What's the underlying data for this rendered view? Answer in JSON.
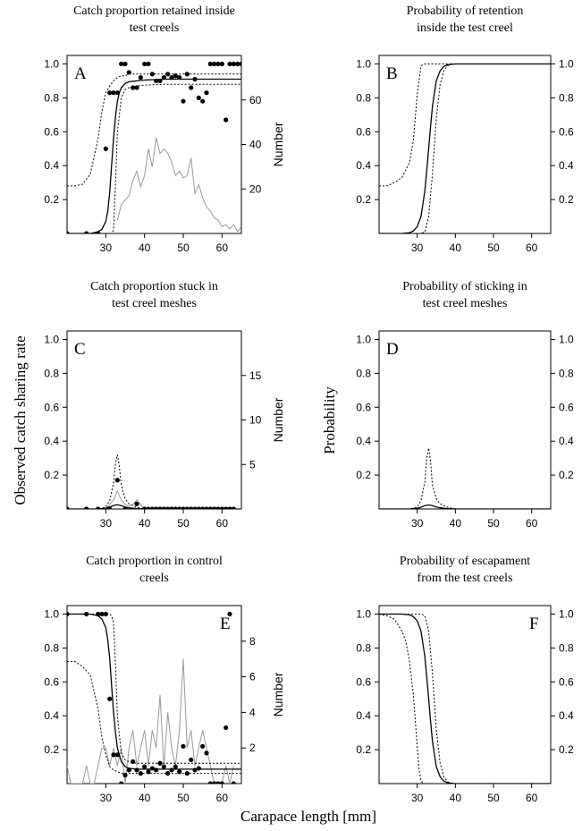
{
  "figure": {
    "xlabel": "Carapace length [mm]",
    "ylabel_left_panels": "Observed catch sharing rate",
    "ylabel_right_panels": "Probability",
    "colors": {
      "line": "#000000",
      "counts": "#999999",
      "points": "#000000"
    }
  },
  "chart_data": [
    {
      "id": "A",
      "type": "line",
      "title_lines": [
        "Catch proportion retained inside",
        "test creels"
      ],
      "letter": "A",
      "xlim": [
        20,
        65
      ],
      "xticks": [
        30,
        40,
        50,
        60
      ],
      "ylim": [
        0,
        1.05
      ],
      "yticks": [
        0.2,
        0.4,
        0.6,
        0.8,
        1.0
      ],
      "secondary_axis": {
        "label": "Number",
        "ylim": [
          0,
          80
        ],
        "ticks": [
          20,
          40,
          60
        ]
      },
      "fit": {
        "x": [
          20,
          22,
          24,
          26,
          27,
          28,
          29,
          30,
          30.5,
          31,
          31.5,
          32,
          32.5,
          33,
          33.5,
          34,
          35,
          36,
          38,
          40,
          45,
          50,
          55,
          60,
          65
        ],
        "y": [
          0,
          0,
          0,
          0,
          0.005,
          0.01,
          0.025,
          0.07,
          0.13,
          0.24,
          0.4,
          0.56,
          0.69,
          0.78,
          0.83,
          0.86,
          0.885,
          0.895,
          0.9,
          0.905,
          0.91,
          0.91,
          0.91,
          0.91,
          0.91
        ]
      },
      "ci_lower": {
        "x": [
          20,
          28,
          29,
          30,
          31,
          31.5,
          32,
          32.5,
          33,
          34,
          35,
          36,
          38,
          40,
          45,
          50,
          55,
          60,
          65
        ],
        "y": [
          0,
          0,
          0,
          0,
          0,
          0,
          0.02,
          0.3,
          0.6,
          0.8,
          0.85,
          0.86,
          0.87,
          0.875,
          0.88,
          0.88,
          0.88,
          0.88,
          0.88
        ]
      },
      "ci_upper": {
        "x": [
          20,
          22,
          24,
          26,
          28,
          29,
          30,
          31,
          32,
          33,
          34,
          35,
          36,
          38,
          40,
          45,
          50,
          55,
          60,
          65
        ],
        "y": [
          0.28,
          0.28,
          0.29,
          0.35,
          0.56,
          0.72,
          0.83,
          0.87,
          0.9,
          0.92,
          0.93,
          0.93,
          0.94,
          0.94,
          0.94,
          0.94,
          0.94,
          0.94,
          0.94,
          0.94
        ]
      },
      "points": {
        "x": [
          20,
          25,
          28,
          30,
          31,
          32,
          33,
          34,
          35,
          36,
          37,
          38,
          39,
          40,
          41,
          42,
          43,
          44,
          45,
          46,
          47,
          48,
          49,
          50,
          51,
          52,
          53,
          54,
          55,
          56,
          57,
          58,
          59,
          60,
          61,
          62,
          63,
          64,
          65
        ],
        "y": [
          0,
          0,
          0,
          0.5,
          0.83,
          0.83,
          0.83,
          1.0,
          1.0,
          0.95,
          0.86,
          0.86,
          0.92,
          1.0,
          1.0,
          0.94,
          0.9,
          0.9,
          0.92,
          0.94,
          0.92,
          0.93,
          0.92,
          0.78,
          0.94,
          0.86,
          0.91,
          0.8,
          0.78,
          0.83,
          1.0,
          1.0,
          1.0,
          1.0,
          0.67,
          1.0,
          1.0,
          1.0,
          1.0
        ]
      },
      "counts": {
        "x": [
          33,
          34,
          35,
          36,
          37,
          38,
          39,
          40,
          41,
          42,
          43,
          44,
          45,
          46,
          47,
          48,
          49,
          50,
          51,
          52,
          53,
          54,
          55,
          56,
          57,
          58,
          59,
          60,
          61,
          62,
          63,
          64,
          65
        ],
        "y": [
          6,
          13,
          15,
          17,
          24,
          28,
          21,
          26,
          38,
          30,
          43,
          36,
          38,
          36,
          32,
          26,
          28,
          25,
          26,
          34,
          18,
          22,
          16,
          12,
          10,
          7,
          6,
          3,
          4,
          2,
          4,
          1,
          3
        ]
      }
    },
    {
      "id": "B",
      "type": "line",
      "title_lines": [
        "Probability of retention",
        "inside the test creel"
      ],
      "letter": "B",
      "xlim": [
        20,
        65
      ],
      "xticks": [
        30,
        40,
        50,
        60
      ],
      "ylim": [
        0,
        1.05
      ],
      "yticks": [
        0.2,
        0.4,
        0.6,
        0.8,
        1.0
      ],
      "fit": {
        "x": [
          20,
          26,
          28,
          29,
          30,
          31,
          32,
          32.5,
          33,
          33.5,
          34,
          35,
          36,
          37,
          38,
          40,
          45,
          50,
          55,
          60,
          65
        ],
        "y": [
          0,
          0,
          0.005,
          0.015,
          0.04,
          0.1,
          0.25,
          0.37,
          0.5,
          0.63,
          0.75,
          0.9,
          0.96,
          0.985,
          0.995,
          1,
          1,
          1,
          1,
          1,
          1
        ]
      },
      "ci_lower": {
        "x": [
          20,
          28,
          31,
          32,
          33,
          34,
          35,
          36,
          37,
          38,
          39,
          40,
          45,
          50,
          55,
          60,
          65
        ],
        "y": [
          0,
          0,
          0,
          0.01,
          0.1,
          0.35,
          0.68,
          0.88,
          0.96,
          0.99,
          1,
          1,
          1,
          1,
          1,
          1,
          1
        ]
      },
      "ci_upper": {
        "x": [
          20,
          22,
          24,
          26,
          28,
          29,
          30,
          31,
          32,
          33,
          34,
          35,
          38,
          40,
          45,
          50,
          55,
          60,
          65
        ],
        "y": [
          0.28,
          0.28,
          0.3,
          0.33,
          0.42,
          0.55,
          0.82,
          0.99,
          1,
          1,
          1,
          1,
          1,
          1,
          1,
          1,
          1,
          1,
          1
        ]
      }
    },
    {
      "id": "C",
      "type": "line",
      "title_lines": [
        "Catch proportion stuck in",
        "test creel meshes"
      ],
      "letter": "C",
      "xlim": [
        20,
        65
      ],
      "xticks": [
        30,
        40,
        50,
        60
      ],
      "ylim": [
        0,
        1.05
      ],
      "yticks": [
        0.2,
        0.4,
        0.6,
        0.8,
        1.0
      ],
      "secondary_axis": {
        "label": "Number",
        "ylim": [
          0,
          20
        ],
        "ticks": [
          5,
          10,
          15
        ]
      },
      "fit": {
        "x": [
          20,
          28,
          30,
          31,
          32,
          33,
          34,
          35,
          36,
          37,
          38,
          40,
          65
        ],
        "y": [
          0,
          0,
          0.005,
          0.012,
          0.02,
          0.025,
          0.02,
          0.012,
          0.007,
          0.004,
          0.002,
          0,
          0
        ]
      },
      "ci_lower": {
        "x": [
          20,
          65
        ],
        "y": [
          0,
          0
        ]
      },
      "ci_upper": {
        "x": [
          20,
          28,
          30,
          31,
          32,
          32.5,
          33,
          33.5,
          34,
          35,
          36,
          37,
          38,
          40,
          65
        ],
        "y": [
          0,
          0,
          0.01,
          0.05,
          0.15,
          0.27,
          0.32,
          0.25,
          0.14,
          0.06,
          0.03,
          0.02,
          0.01,
          0,
          0
        ]
      },
      "points": {
        "x": [
          20,
          25,
          28,
          31,
          33,
          35,
          38,
          40,
          41,
          42,
          43,
          44,
          45,
          46,
          47,
          48,
          49,
          50,
          51,
          52,
          53,
          54,
          55,
          56,
          57,
          58,
          59,
          60,
          61,
          62,
          63
        ],
        "y": [
          0,
          0,
          0,
          0,
          0.17,
          0,
          0.03,
          0,
          0,
          0,
          0,
          0,
          0,
          0,
          0,
          0,
          0,
          0,
          0,
          0,
          0,
          0,
          0,
          0,
          0,
          0,
          0,
          0,
          0,
          0,
          0
        ]
      },
      "counts": {
        "x": [
          20,
          30,
          31,
          32,
          33,
          34,
          35,
          36,
          37,
          38,
          39,
          40,
          65
        ],
        "y": [
          0,
          0,
          0.5,
          1,
          2,
          1,
          0.5,
          0.3,
          0.5,
          1,
          0.5,
          0,
          0
        ]
      }
    },
    {
      "id": "D",
      "type": "line",
      "title_lines": [
        "Probability of sticking in",
        "test creel meshes"
      ],
      "letter": "D",
      "xlim": [
        20,
        65
      ],
      "xticks": [
        30,
        40,
        50,
        60
      ],
      "ylim": [
        0,
        1.05
      ],
      "yticks": [
        0.2,
        0.4,
        0.6,
        0.8,
        1.0
      ],
      "fit": {
        "x": [
          20,
          28,
          30,
          31,
          32,
          33,
          34,
          35,
          36,
          37,
          38,
          40,
          65
        ],
        "y": [
          0,
          0,
          0.004,
          0.01,
          0.02,
          0.024,
          0.02,
          0.012,
          0.007,
          0.004,
          0.002,
          0,
          0
        ]
      },
      "ci_lower": {
        "x": [
          20,
          65
        ],
        "y": [
          0,
          0
        ]
      },
      "ci_upper": {
        "x": [
          20,
          28,
          30,
          31,
          32,
          32.5,
          33,
          33.5,
          34,
          35,
          36,
          37,
          38,
          40,
          65
        ],
        "y": [
          0,
          0,
          0.01,
          0.05,
          0.16,
          0.3,
          0.36,
          0.28,
          0.14,
          0.06,
          0.03,
          0.02,
          0.01,
          0,
          0
        ]
      }
    },
    {
      "id": "E",
      "type": "line",
      "title_lines": [
        "Catch proportion in control",
        "creels"
      ],
      "letter": "E",
      "xlim": [
        20,
        65
      ],
      "xticks": [
        30,
        40,
        50,
        60
      ],
      "ylim": [
        0,
        1.05
      ],
      "yticks": [
        0.2,
        0.4,
        0.6,
        0.8,
        1.0
      ],
      "secondary_axis": {
        "label": "Number",
        "ylim": [
          0,
          10
        ],
        "ticks": [
          2,
          4,
          6,
          8
        ]
      },
      "fit": {
        "x": [
          20,
          26,
          28,
          29,
          30,
          30.5,
          31,
          31.5,
          32,
          32.5,
          33,
          34,
          35,
          36,
          38,
          40,
          45,
          50,
          55,
          60,
          65
        ],
        "y": [
          1,
          1,
          0.99,
          0.97,
          0.92,
          0.85,
          0.74,
          0.58,
          0.42,
          0.3,
          0.21,
          0.13,
          0.1,
          0.09,
          0.085,
          0.085,
          0.085,
          0.085,
          0.085,
          0.085,
          0.085
        ]
      },
      "ci_lower": {
        "x": [
          20,
          22,
          24,
          26,
          28,
          29,
          30,
          31,
          32,
          33,
          34,
          35,
          38,
          40,
          45,
          50,
          55,
          60,
          65
        ],
        "y": [
          0.72,
          0.72,
          0.69,
          0.64,
          0.44,
          0.27,
          0.17,
          0.1,
          0.08,
          0.07,
          0.06,
          0.06,
          0.06,
          0.06,
          0.06,
          0.06,
          0.06,
          0.06,
          0.06
        ]
      },
      "ci_upper": {
        "x": [
          20,
          28,
          30,
          31,
          31.5,
          32,
          32.5,
          33,
          34,
          35,
          36,
          38,
          40,
          45,
          50,
          55,
          60,
          65
        ],
        "y": [
          1.0,
          1.0,
          1.0,
          1.0,
          0.99,
          0.95,
          0.7,
          0.4,
          0.18,
          0.14,
          0.13,
          0.12,
          0.12,
          0.12,
          0.12,
          0.12,
          0.12,
          0.12
        ]
      },
      "points": {
        "x": [
          20,
          25,
          28,
          29,
          30,
          31,
          32,
          33,
          34,
          35,
          36,
          37,
          38,
          39,
          40,
          41,
          42,
          43,
          44,
          45,
          46,
          47,
          48,
          49,
          50,
          51,
          52,
          53,
          54,
          55,
          56,
          57,
          58,
          59,
          60,
          61,
          62,
          63
        ],
        "y": [
          1.0,
          1.0,
          1.0,
          1.0,
          1.0,
          0.5,
          0.17,
          0.17,
          0.0,
          0.05,
          0.08,
          0.13,
          0.08,
          0.06,
          0.1,
          0.07,
          0.09,
          0.08,
          0.12,
          0.1,
          0.06,
          0.08,
          0.1,
          0.07,
          0.22,
          0.06,
          0.14,
          0.08,
          0.09,
          0.22,
          0.18,
          0.0,
          0.0,
          0.0,
          0.0,
          0.33,
          1.0,
          0.0
        ]
      },
      "counts": {
        "x": [
          20,
          21,
          22,
          23,
          24,
          25,
          26,
          27,
          28,
          29,
          30,
          31,
          32,
          33,
          34,
          35,
          36,
          37,
          38,
          39,
          40,
          41,
          42,
          43,
          44,
          45,
          46,
          47,
          48,
          49,
          50,
          51,
          52,
          53,
          54,
          55,
          56,
          57,
          58,
          59,
          60,
          61,
          62,
          63
        ],
        "y": [
          1,
          0,
          0,
          0,
          0,
          1,
          0,
          0,
          1,
          2,
          2,
          1,
          2,
          1,
          2,
          0,
          2,
          3,
          1,
          2,
          3,
          1,
          3,
          2,
          5,
          1,
          4,
          2,
          1,
          3,
          7,
          2,
          3,
          1,
          2,
          3,
          2,
          1,
          0,
          0,
          0,
          1,
          0,
          1
        ]
      }
    },
    {
      "id": "F",
      "type": "line",
      "title_lines": [
        "Probability of escapament",
        "from the test creels"
      ],
      "letter": "F",
      "xlim": [
        20,
        65
      ],
      "xticks": [
        30,
        40,
        50,
        60
      ],
      "ylim": [
        0,
        1.05
      ],
      "yticks": [
        0.2,
        0.4,
        0.6,
        0.8,
        1.0
      ],
      "fit": {
        "x": [
          20,
          26,
          28,
          29,
          30,
          31,
          32,
          32.5,
          33,
          33.5,
          34,
          35,
          36,
          37,
          38,
          40,
          45,
          50,
          55,
          60,
          65
        ],
        "y": [
          1,
          1,
          0.995,
          0.985,
          0.96,
          0.9,
          0.75,
          0.63,
          0.5,
          0.37,
          0.25,
          0.1,
          0.04,
          0.015,
          0.005,
          0,
          0,
          0,
          0,
          0,
          0
        ]
      },
      "ci_lower": {
        "x": [
          20,
          22,
          24,
          26,
          27,
          28,
          29,
          30,
          30.5,
          31,
          31.5,
          32,
          65
        ],
        "y": [
          1,
          0.99,
          0.97,
          0.9,
          0.84,
          0.72,
          0.52,
          0.22,
          0.08,
          0.02,
          0,
          0,
          0
        ]
      },
      "ci_upper": {
        "x": [
          20,
          30,
          31,
          32,
          33,
          34,
          35,
          36,
          37,
          38,
          39,
          40,
          65
        ],
        "y": [
          1,
          1,
          1,
          0.99,
          0.9,
          0.65,
          0.32,
          0.12,
          0.04,
          0.01,
          0,
          0,
          0
        ]
      }
    }
  ]
}
